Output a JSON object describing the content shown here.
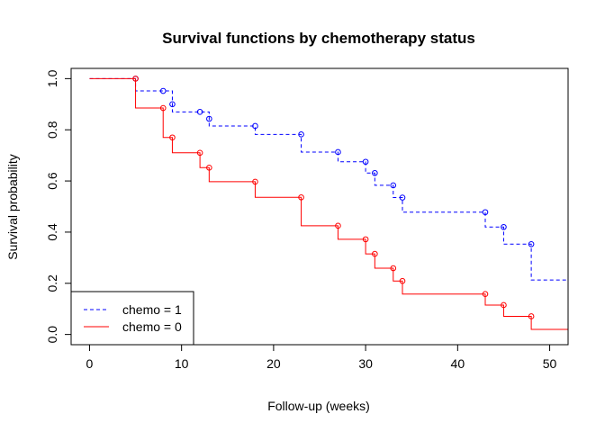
{
  "chart_data": {
    "type": "line",
    "subtype": "step",
    "title": "Survival functions by chemotherapy status",
    "xlabel": "Follow-up (weeks)",
    "ylabel": "Survival probability",
    "xlim": [
      -2,
      52
    ],
    "ylim": [
      -0.04,
      1.04
    ],
    "xticks": [
      0,
      10,
      20,
      30,
      40,
      50
    ],
    "yticks": [
      0.0,
      0.2,
      0.4,
      0.6,
      0.8,
      1.0
    ],
    "xtick_labels": [
      "0",
      "10",
      "20",
      "30",
      "40",
      "50"
    ],
    "ytick_labels": [
      "0.0",
      "0.2",
      "0.4",
      "0.6",
      "0.8",
      "1.0"
    ],
    "legend_position": "bottom-left",
    "grid": false,
    "series": [
      {
        "name": "chemo = 1",
        "color": "#0000ff",
        "line_style": "dashed",
        "steps": [
          [
            0,
            1.0
          ],
          [
            5,
            0.952
          ],
          [
            8,
            0.952
          ],
          [
            9,
            0.87
          ],
          [
            12,
            0.87
          ],
          [
            13,
            0.815
          ],
          [
            18,
            0.782
          ],
          [
            23,
            0.713
          ],
          [
            27,
            0.675
          ],
          [
            30,
            0.631
          ],
          [
            31,
            0.583
          ],
          [
            33,
            0.535
          ],
          [
            34,
            0.478
          ],
          [
            43,
            0.42
          ],
          [
            45,
            0.353
          ],
          [
            48,
            0.213
          ],
          [
            52,
            0.213
          ]
        ],
        "censored": [
          [
            5,
            1.0
          ],
          [
            8,
            0.952
          ],
          [
            9,
            0.9
          ],
          [
            12,
            0.87
          ],
          [
            13,
            0.843
          ],
          [
            18,
            0.815
          ],
          [
            23,
            0.782
          ],
          [
            27,
            0.713
          ],
          [
            30,
            0.675
          ],
          [
            31,
            0.631
          ],
          [
            33,
            0.583
          ],
          [
            34,
            0.535
          ],
          [
            43,
            0.478
          ],
          [
            45,
            0.42
          ],
          [
            48,
            0.353
          ]
        ]
      },
      {
        "name": "chemo = 0",
        "color": "#ff0000",
        "line_style": "solid",
        "steps": [
          [
            0,
            1.0
          ],
          [
            5,
            0.885
          ],
          [
            8,
            0.77
          ],
          [
            9,
            0.71
          ],
          [
            12,
            0.652
          ],
          [
            13,
            0.597
          ],
          [
            18,
            0.536
          ],
          [
            23,
            0.425
          ],
          [
            27,
            0.372
          ],
          [
            30,
            0.315
          ],
          [
            31,
            0.259
          ],
          [
            33,
            0.209
          ],
          [
            34,
            0.158
          ],
          [
            43,
            0.115
          ],
          [
            45,
            0.071
          ],
          [
            48,
            0.02
          ],
          [
            52,
            0.02
          ]
        ],
        "censored": [
          [
            5,
            1.0
          ],
          [
            8,
            0.885
          ],
          [
            9,
            0.77
          ],
          [
            12,
            0.71
          ],
          [
            13,
            0.652
          ],
          [
            18,
            0.597
          ],
          [
            23,
            0.536
          ],
          [
            27,
            0.425
          ],
          [
            30,
            0.372
          ],
          [
            31,
            0.315
          ],
          [
            33,
            0.259
          ],
          [
            34,
            0.209
          ],
          [
            43,
            0.158
          ],
          [
            45,
            0.115
          ],
          [
            48,
            0.071
          ]
        ]
      }
    ]
  }
}
